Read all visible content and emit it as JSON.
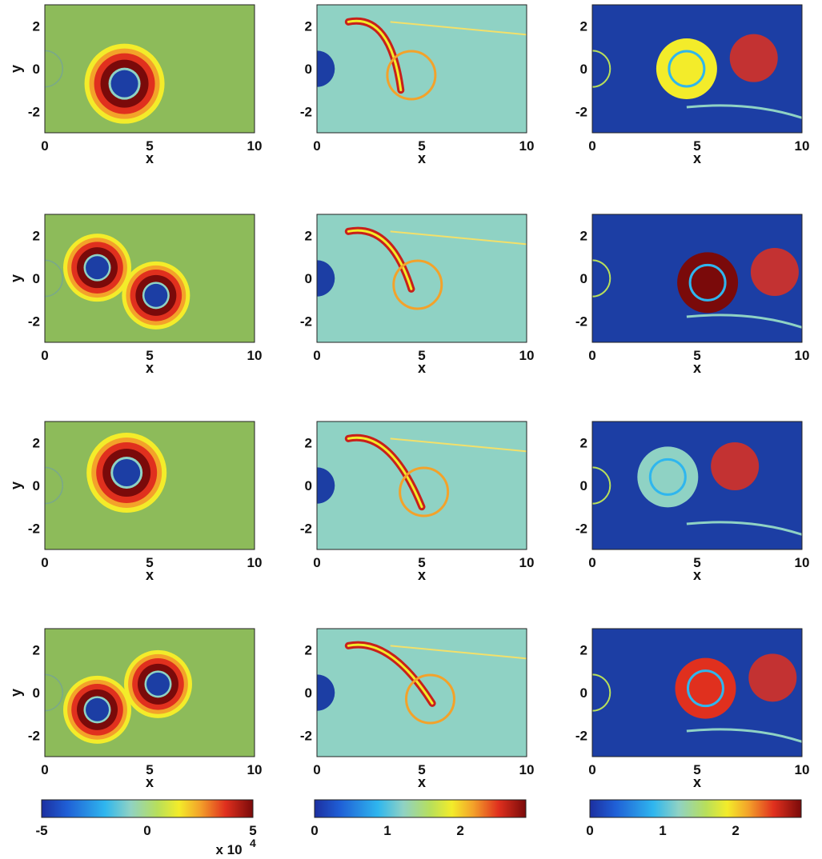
{
  "figure": {
    "panel_rows": 4,
    "panel_cols": 3,
    "panel_bg": [
      "#8dbb5a",
      "#8fd2c4",
      "#1c3ea4"
    ]
  },
  "chart_data": {
    "type": "heatmap",
    "xlabel": "x",
    "ylabel": "y",
    "xlim": [
      0,
      10
    ],
    "ylim": [
      -3,
      3
    ],
    "xticks": [
      0,
      5,
      10
    ],
    "yticks": [
      2,
      0,
      -2
    ],
    "obstacle": {
      "shape": "circle",
      "center": [
        0,
        0
      ],
      "radius": 0.85
    },
    "colormap": "jet",
    "colorbars": [
      {
        "min": -5,
        "max": 5,
        "ticks": [
          "-5",
          "0",
          "5"
        ],
        "multiplier": "x 10",
        "exponent": "4"
      },
      {
        "min": 0,
        "max": 2.9,
        "ticks": [
          "0",
          "1",
          "2"
        ]
      },
      {
        "min": 0,
        "max": 2.9,
        "ticks": [
          "0",
          "1",
          "2"
        ]
      }
    ],
    "rows": [
      {
        "col1_vortices": [
          {
            "x": 3.8,
            "y": -0.7,
            "sign": 1
          }
        ]
      },
      {
        "col1_vortices": [
          {
            "x": 2.5,
            "y": 0.5,
            "sign": 1
          },
          {
            "x": 5.3,
            "y": -0.8,
            "sign": 1
          }
        ]
      },
      {
        "col1_vortices": [
          {
            "x": 3.9,
            "y": 0.6,
            "sign": 1
          }
        ]
      },
      {
        "col1_vortices": [
          {
            "x": 2.5,
            "y": -0.8,
            "sign": 1
          },
          {
            "x": 5.4,
            "y": 0.4,
            "sign": 1
          }
        ]
      }
    ]
  }
}
